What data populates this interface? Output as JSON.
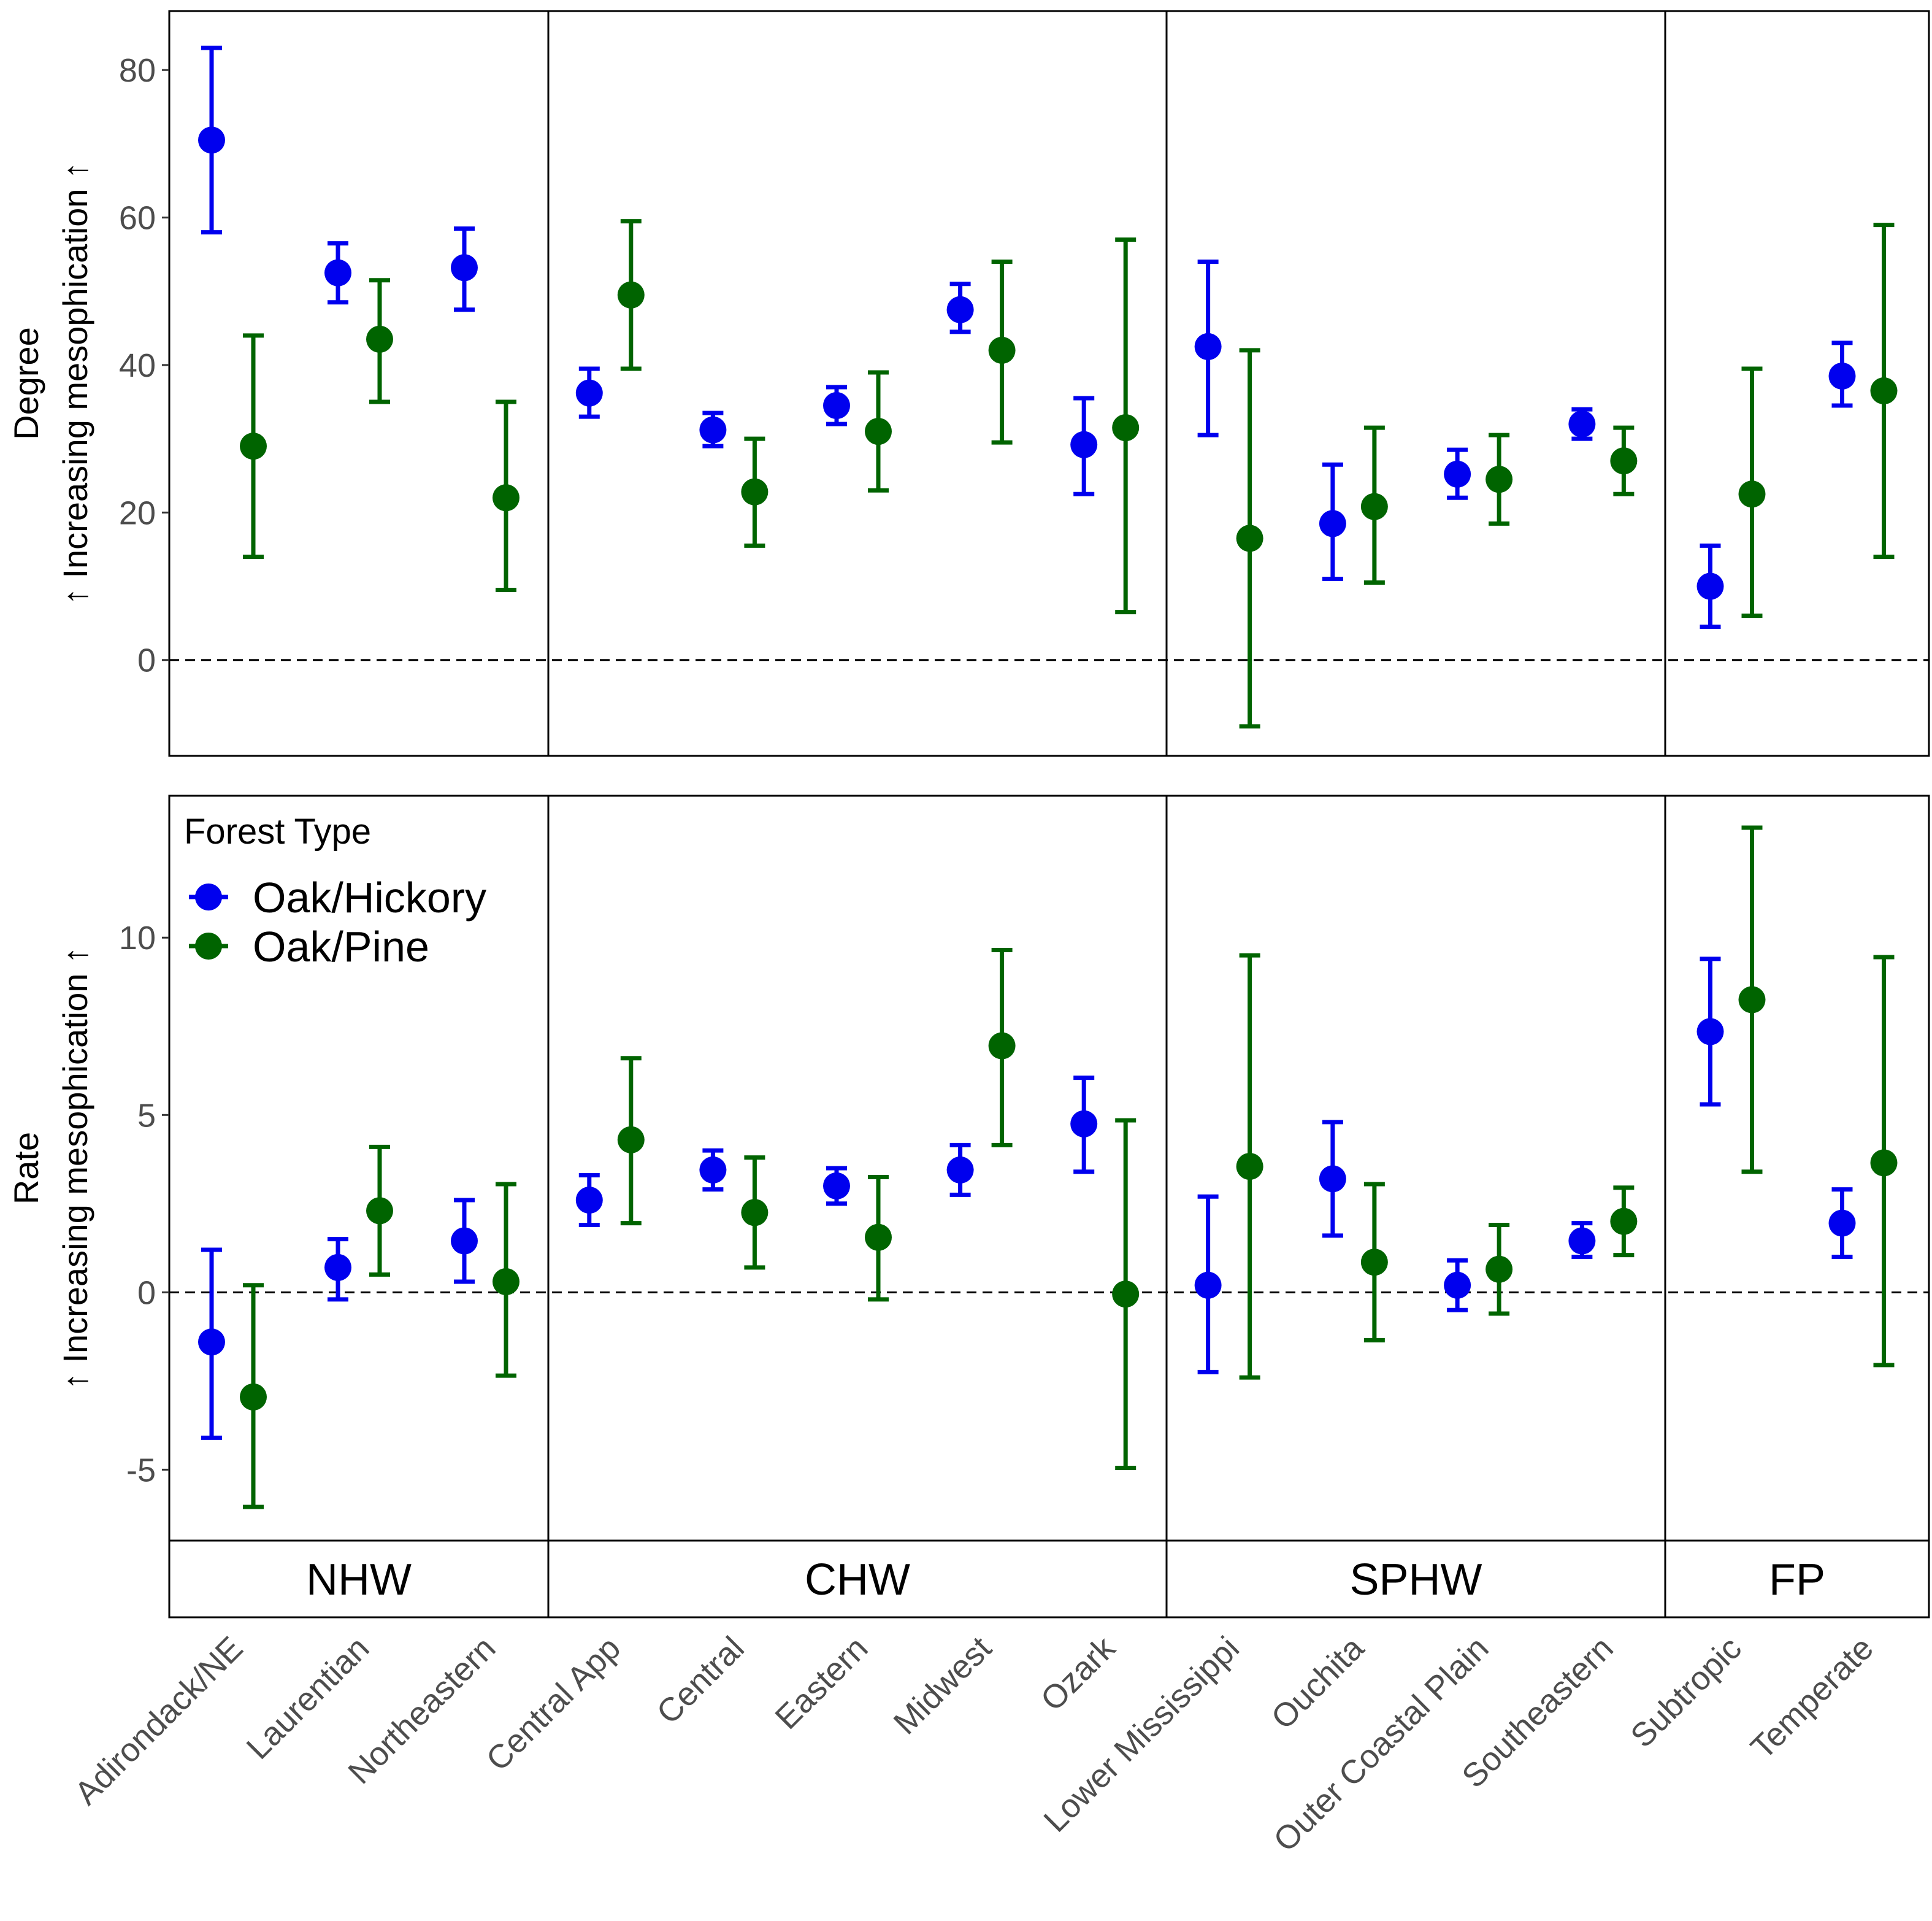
{
  "chart_data": {
    "type": "errorbar",
    "legend": {
      "title": "Forest Type",
      "placement": "top-left",
      "entries": [
        {
          "name": "Oak/Hickory",
          "color": "#0000ee"
        },
        {
          "name": "Oak/Pine",
          "color": "#006400"
        }
      ]
    },
    "groups": [
      {
        "name": "NHW",
        "categories": [
          "Adirondack/NE",
          "Laurentian",
          "Northeastern"
        ]
      },
      {
        "name": "CHW",
        "categories": [
          "Central App",
          "Central",
          "Eastern",
          "Midwest",
          "Ozark"
        ]
      },
      {
        "name": "SPHW",
        "categories": [
          "Lower Mississippi",
          "Ouchita",
          "Outer Coastal Plain",
          "Southeastern"
        ]
      },
      {
        "name": "FP",
        "categories": [
          "Subtropic",
          "Temperate"
        ]
      }
    ],
    "panels": [
      {
        "ylabel_line1": "Degree",
        "ylabel_line2": "↑ Increasing mesophication ↑",
        "ylim": [
          -13,
          88
        ],
        "yticks": [
          0,
          20,
          40,
          60,
          80
        ],
        "ytick_labels": [
          "0",
          "20",
          "40",
          "60",
          "80"
        ],
        "reference_line": 0,
        "series": [
          {
            "name": "Oak/Hickory",
            "values": [
              {
                "est": 70.5,
                "lo": 58,
                "hi": 83
              },
              {
                "est": 52.5,
                "lo": 48.5,
                "hi": 56.5
              },
              {
                "est": 53.2,
                "lo": 47.5,
                "hi": 58.5
              },
              {
                "est": 36.2,
                "lo": 33,
                "hi": 39.5
              },
              {
                "est": 31.2,
                "lo": 29,
                "hi": 33.5
              },
              {
                "est": 34.5,
                "lo": 32,
                "hi": 37
              },
              {
                "est": 47.5,
                "lo": 44.5,
                "hi": 51
              },
              {
                "est": 29.2,
                "lo": 22.5,
                "hi": 35.5
              },
              {
                "est": 42.5,
                "lo": 30.5,
                "hi": 54
              },
              {
                "est": 18.5,
                "lo": 11,
                "hi": 26.5
              },
              {
                "est": 25.2,
                "lo": 22,
                "hi": 28.5
              },
              {
                "est": 32,
                "lo": 30,
                "hi": 34
              },
              {
                "est": 10,
                "lo": 4.5,
                "hi": 15.5
              },
              {
                "est": 38.5,
                "lo": 34.5,
                "hi": 43
              }
            ]
          },
          {
            "name": "Oak/Pine",
            "values": [
              {
                "est": 29,
                "lo": 14,
                "hi": 44
              },
              {
                "est": 43.5,
                "lo": 35,
                "hi": 51.5
              },
              {
                "est": 22,
                "lo": 9.5,
                "hi": 35
              },
              {
                "est": 49.5,
                "lo": 39.5,
                "hi": 59.5
              },
              {
                "est": 22.8,
                "lo": 15.5,
                "hi": 30
              },
              {
                "est": 31,
                "lo": 23,
                "hi": 39
              },
              {
                "est": 42,
                "lo": 29.5,
                "hi": 54
              },
              {
                "est": 31.5,
                "lo": 6.5,
                "hi": 57
              },
              {
                "est": 16.5,
                "lo": -9,
                "hi": 42
              },
              {
                "est": 20.8,
                "lo": 10.5,
                "hi": 31.5
              },
              {
                "est": 24.5,
                "lo": 18.5,
                "hi": 30.5
              },
              {
                "est": 27,
                "lo": 22.5,
                "hi": 31.5
              },
              {
                "est": 22.5,
                "lo": 6,
                "hi": 39.5
              },
              {
                "est": 36.5,
                "lo": 14,
                "hi": 59
              }
            ]
          }
        ]
      },
      {
        "ylabel_line1": "Rate",
        "ylabel_line2": "↑ Increasing mesophication ↑",
        "ylim": [
          -7,
          14
        ],
        "yticks": [
          -5,
          0,
          5,
          10
        ],
        "ytick_labels": [
          "-5",
          "0",
          "5",
          "10"
        ],
        "reference_line": 0,
        "series": [
          {
            "name": "Oak/Hickory",
            "values": [
              {
                "est": -1.4,
                "lo": -4.1,
                "hi": 1.2
              },
              {
                "est": 0.7,
                "lo": -0.2,
                "hi": 1.5
              },
              {
                "est": 1.45,
                "lo": 0.3,
                "hi": 2.6
              },
              {
                "est": 2.6,
                "lo": 1.9,
                "hi": 3.3
              },
              {
                "est": 3.45,
                "lo": 2.9,
                "hi": 4
              },
              {
                "est": 3,
                "lo": 2.5,
                "hi": 3.5
              },
              {
                "est": 3.45,
                "lo": 2.75,
                "hi": 4.15
              },
              {
                "est": 4.75,
                "lo": 3.4,
                "hi": 6.05
              },
              {
                "est": 0.2,
                "lo": -2.25,
                "hi": 2.7
              },
              {
                "est": 3.2,
                "lo": 1.6,
                "hi": 4.8
              },
              {
                "est": 0.2,
                "lo": -0.5,
                "hi": 0.9
              },
              {
                "est": 1.45,
                "lo": 1,
                "hi": 1.95
              },
              {
                "est": 7.35,
                "lo": 5.3,
                "hi": 9.4
              },
              {
                "est": 1.95,
                "lo": 1,
                "hi": 2.9
              }
            ]
          },
          {
            "name": "Oak/Pine",
            "values": [
              {
                "est": -2.95,
                "lo": -6.05,
                "hi": 0.2
              },
              {
                "est": 2.3,
                "lo": 0.5,
                "hi": 4.1
              },
              {
                "est": 0.3,
                "lo": -2.35,
                "hi": 3.05
              },
              {
                "est": 4.3,
                "lo": 1.95,
                "hi": 6.6
              },
              {
                "est": 2.25,
                "lo": 0.7,
                "hi": 3.8
              },
              {
                "est": 1.55,
                "lo": -0.2,
                "hi": 3.25
              },
              {
                "est": 6.95,
                "lo": 4.15,
                "hi": 9.65
              },
              {
                "est": -0.05,
                "lo": -4.95,
                "hi": 4.85
              },
              {
                "est": 3.55,
                "lo": -2.4,
                "hi": 9.5
              },
              {
                "est": 0.85,
                "lo": -1.35,
                "hi": 3.05
              },
              {
                "est": 0.65,
                "lo": -0.6,
                "hi": 1.9
              },
              {
                "est": 2,
                "lo": 1.05,
                "hi": 2.95
              },
              {
                "est": 8.25,
                "lo": 3.4,
                "hi": 13.1
              },
              {
                "est": 3.65,
                "lo": -2.05,
                "hi": 9.45
              }
            ]
          }
        ]
      }
    ]
  }
}
